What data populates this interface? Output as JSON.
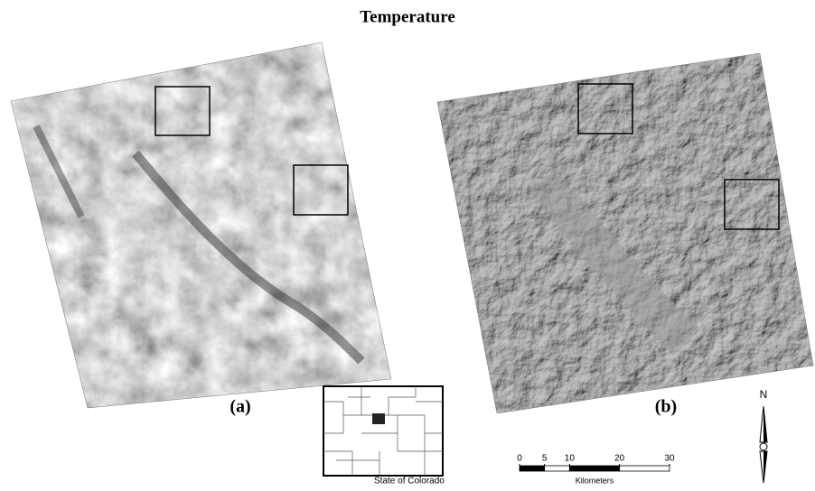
{
  "title": "Temperature",
  "panels": [
    {
      "label": "(a)"
    },
    {
      "label": "(b)"
    }
  ],
  "inset": {
    "label": "State of Colorado"
  },
  "scale_bar": {
    "ticks": [
      0,
      5,
      10,
      20,
      30
    ],
    "unit": "Kilometers"
  },
  "north_arrow": {
    "label": "N"
  }
}
